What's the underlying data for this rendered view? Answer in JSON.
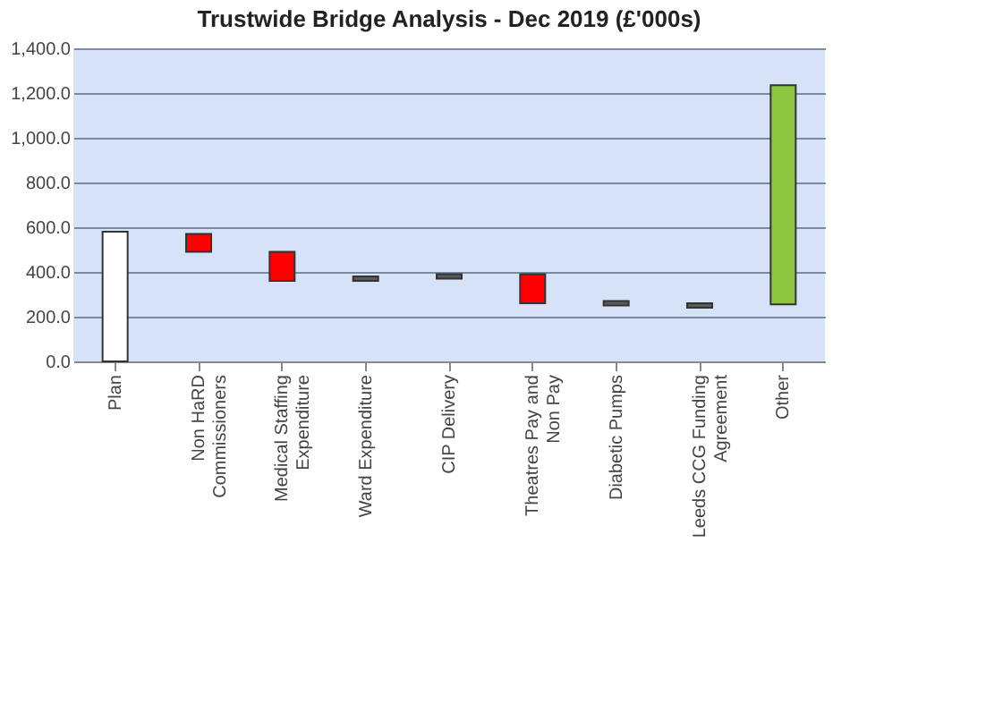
{
  "chart_data": {
    "type": "bar",
    "title": "Trustwide Bridge Analysis  - Dec 2019 (£'000s)",
    "categories": [
      "Plan",
      "Non HaRD Commissioners",
      "Medical Staffing Expenditure",
      "Ward Expenditure",
      "CIP Delivery",
      "Theatres Pay and Non Pay",
      "Diabetic Pumps",
      "Leeds CCG Funding Agreement",
      "Other"
    ],
    "base": [
      0,
      490,
      360,
      360,
      370,
      260,
      250,
      240,
      255
    ],
    "values": [
      580,
      80,
      130,
      20,
      20,
      130,
      20,
      20,
      980
    ],
    "colors": [
      "#ffffff",
      "#ff0000",
      "#ff0000",
      "#5a5a5a",
      "#5a5a5a",
      "#ff0000",
      "#5a5a5a",
      "#5a5a5a",
      "#8dc63f"
    ],
    "ylim": [
      0,
      1400
    ],
    "yticks": [
      {
        "value": 0,
        "label": "0.0"
      },
      {
        "value": 200,
        "label": "200.0"
      },
      {
        "value": 400,
        "label": "400.0"
      },
      {
        "value": 600,
        "label": "600.0"
      },
      {
        "value": 800,
        "label": "800.0"
      },
      {
        "value": 1000,
        "label": "1,000.0"
      },
      {
        "value": 1200,
        "label": "1,200.0"
      },
      {
        "value": 1400,
        "label": "1,400.0"
      }
    ],
    "grid": "y"
  }
}
